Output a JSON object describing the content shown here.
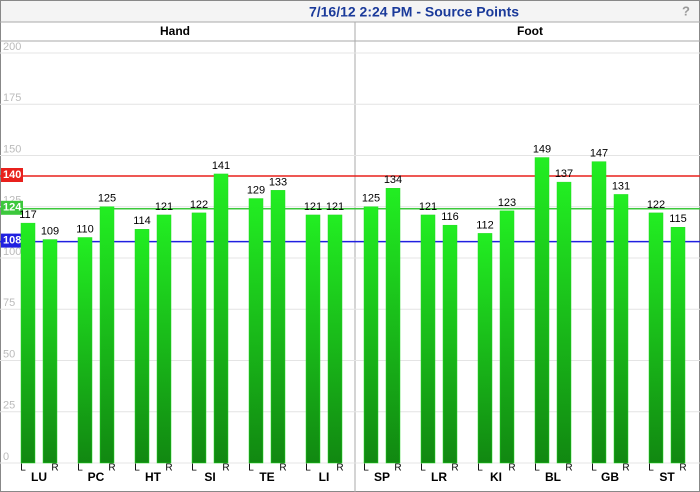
{
  "chart_data": {
    "type": "bar",
    "title": "7/16/12 2:24 PM - Source Points",
    "help": "?",
    "ylim": [
      0,
      200
    ],
    "yticks": [
      0,
      25,
      50,
      75,
      100,
      125,
      150,
      175,
      200
    ],
    "grid": true,
    "reference_lines": [
      {
        "value": 140,
        "color": "#e8201c"
      },
      {
        "value": 124,
        "color": "#3cc83c"
      },
      {
        "value": 108,
        "color": "#2020e0"
      }
    ],
    "panels": [
      {
        "title": "Hand",
        "categories": [
          "LU",
          "PC",
          "HT",
          "SI",
          "TE",
          "LI"
        ],
        "series": [
          {
            "name": "L",
            "color": "#22dd22",
            "values": [
              117,
              110,
              114,
              122,
              129,
              121
            ]
          },
          {
            "name": "R",
            "color": "#22dd22",
            "values": [
              109,
              125,
              121,
              141,
              133,
              121
            ]
          }
        ]
      },
      {
        "title": "Foot",
        "categories": [
          "SP",
          "LR",
          "KI",
          "BL",
          "GB",
          "ST"
        ],
        "series": [
          {
            "name": "L",
            "color": "#22dd22",
            "values": [
              125,
              121,
              112,
              149,
              147,
              122
            ]
          },
          {
            "name": "R",
            "color": "#22dd22",
            "values": [
              134,
              116,
              123,
              137,
              131,
              115
            ]
          }
        ]
      }
    ]
  }
}
